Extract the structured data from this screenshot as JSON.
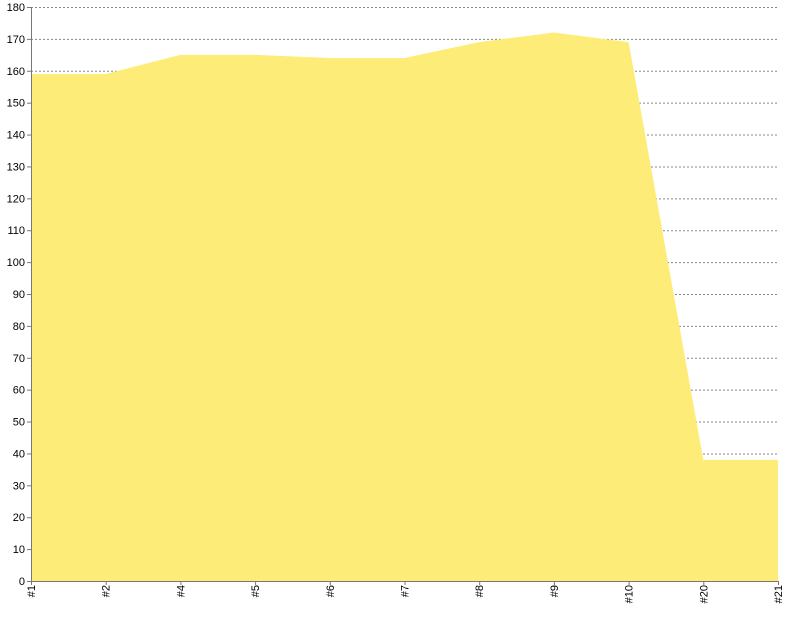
{
  "chart_data": {
    "type": "area",
    "categories": [
      "#1",
      "#2",
      "#4",
      "#5",
      "#6",
      "#7",
      "#8",
      "#9",
      "#10",
      "#20",
      "#21"
    ],
    "series": [
      {
        "values": [
          159,
          159,
          165,
          165,
          164,
          164,
          169,
          172,
          169,
          38,
          38
        ]
      }
    ],
    "ylim": [
      0,
      180
    ],
    "yticks": [
      0,
      10,
      20,
      30,
      40,
      50,
      60,
      70,
      80,
      90,
      100,
      110,
      120,
      130,
      140,
      150,
      160,
      170,
      180
    ],
    "grid": true,
    "legend": "none",
    "colors": {
      "fill": "#fdec77",
      "grid": "#888888",
      "axis": "#777777",
      "text": "#000000"
    }
  }
}
